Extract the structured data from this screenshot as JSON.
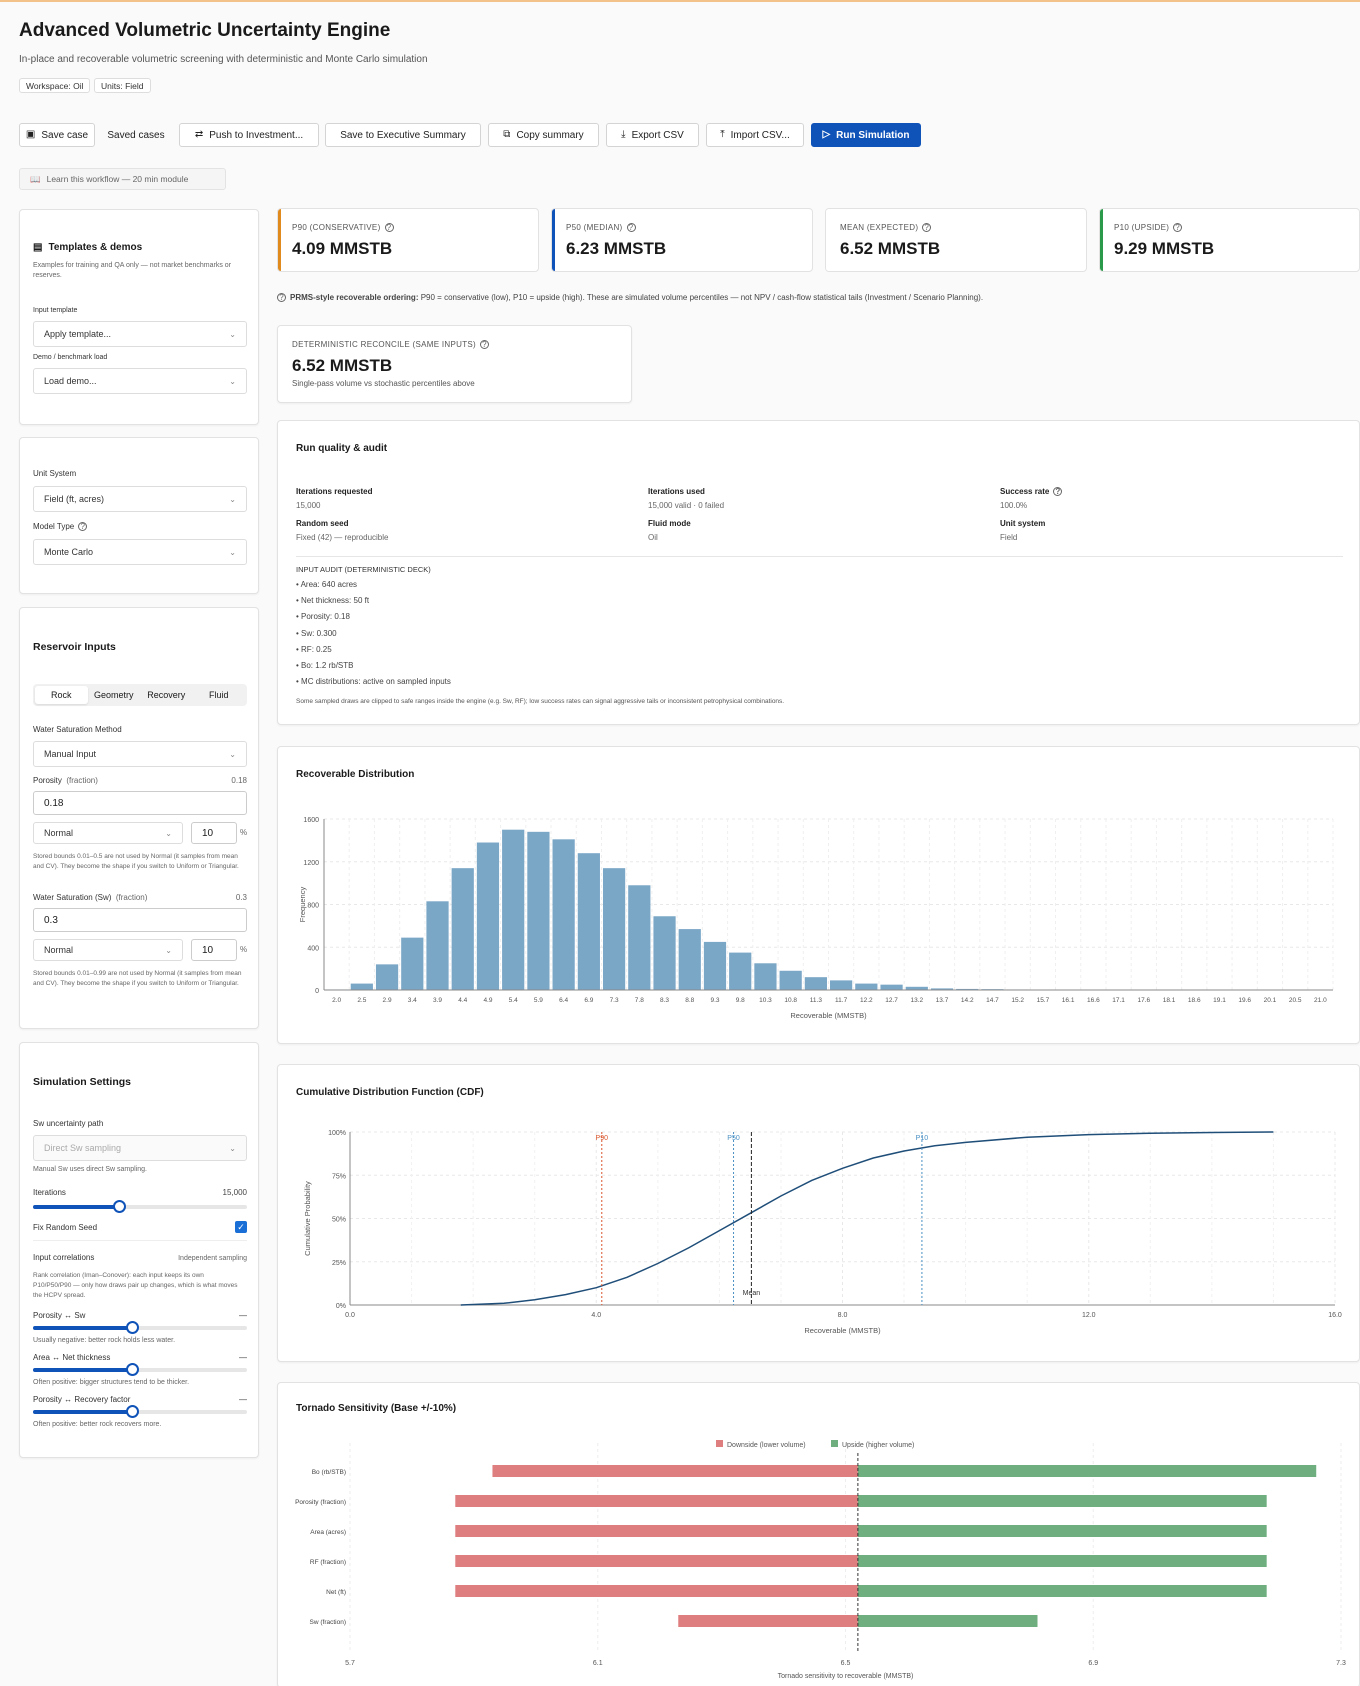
{
  "header": {
    "title": "Advanced Volumetric Uncertainty Engine",
    "subtitle": "In-place and recoverable volumetric screening with deterministic and Monte Carlo simulation",
    "tags": [
      "Workspace: Oil",
      "Units: Field"
    ]
  },
  "toolbar": {
    "save": "Save case",
    "saved": "Saved cases",
    "push": "Push to Investment...",
    "exec": "Save to Executive Summary",
    "copy": "Copy summary",
    "export": "Export CSV",
    "import": "Import CSV...",
    "run": "Run Simulation"
  },
  "learn": "Learn this workflow — 20 min module",
  "templates": {
    "title": "Templates & demos",
    "desc": "Examples for training and QA only — not market benchmarks or reserves.",
    "input_label": "Input template",
    "input_value": "Apply template...",
    "demo_label": "Demo / benchmark load",
    "demo_value": "Load demo..."
  },
  "units": {
    "unit_label": "Unit System",
    "unit_value": "Field (ft, acres)",
    "model_label": "Model Type",
    "model_value": "Monte Carlo"
  },
  "reservoir": {
    "title": "Reservoir Inputs",
    "tabs": [
      "Rock",
      "Geometry",
      "Recovery",
      "Fluid"
    ],
    "sw_method_label": "Water Saturation Method",
    "sw_method_value": "Manual Input",
    "porosity": {
      "label": "Porosity",
      "unit": "(fraction)",
      "right": "0.18",
      "value": "0.18",
      "dist": "Normal",
      "cv": "10",
      "pct": "%",
      "note": "Stored bounds 0.01–0.5 are not used by Normal (it samples from mean and CV). They become the shape if you switch to Uniform or Triangular."
    },
    "sw": {
      "label": "Water Saturation (Sw)",
      "unit": "(fraction)",
      "right": "0.3",
      "value": "0.3",
      "dist": "Normal",
      "cv": "10",
      "pct": "%",
      "note": "Stored bounds 0.01–0.99 are not used by Normal (it samples from mean and CV). They become the shape if you switch to Uniform or Triangular."
    }
  },
  "sim": {
    "title": "Simulation Settings",
    "path_label": "Sw uncertainty path",
    "path_value": "Direct Sw sampling",
    "path_note": "Manual Sw uses direct Sw sampling.",
    "iter_label": "Iterations",
    "iter_value": "15,000",
    "iter_fraction": 0.4,
    "seed_label": "Fix Random Seed",
    "corr_label": "Input correlations",
    "corr_right": "Independent sampling",
    "corr_note": "Rank correlation (Iman–Conover): each input keeps its own P10/P50/P90 — only how draws pair up changes, which is what moves the HCPV spread.",
    "pairs": [
      {
        "label": "Porosity ↔ Sw",
        "val": "—",
        "note": "Usually negative: better rock holds less water."
      },
      {
        "label": "Area ↔ Net thickness",
        "val": "—",
        "note": "Often positive: bigger structures tend to be thicker."
      },
      {
        "label": "Porosity ↔ Recovery factor",
        "val": "—",
        "note": "Often positive: better rock recovers more."
      }
    ]
  },
  "kpis": [
    {
      "label": "P90 (CONSERVATIVE)",
      "value": "4.09 MMSTB",
      "color": "#e08a1e"
    },
    {
      "label": "P50 (MEDIAN)",
      "value": "6.23 MMSTB",
      "color": "#1053b8"
    },
    {
      "label": "MEAN (EXPECTED)",
      "value": "6.52 MMSTB",
      "color": "#ffffff"
    },
    {
      "label": "P10 (UPSIDE)",
      "value": "9.29 MMSTB",
      "color": "#2a9a4a"
    }
  ],
  "prms_note_bold": "PRMS-style recoverable ordering:",
  "prms_note": "P90 = conservative (low), P10 = upside (high). These are simulated volume percentiles — not NPV / cash-flow statistical tails (Investment / Scenario Planning).",
  "det": {
    "label": "DETERMINISTIC RECONCILE (SAME INPUTS)",
    "value": "6.52 MMSTB",
    "note": "Single-pass volume vs stochastic percentiles above"
  },
  "audit": {
    "title": "Run quality & audit",
    "items": [
      {
        "k": "Iterations requested",
        "v": "15,000"
      },
      {
        "k": "Iterations used",
        "v": "15,000 valid · 0 failed"
      },
      {
        "k": "Success rate",
        "v": "100.0%"
      },
      {
        "k": "Random seed",
        "v": "Fixed (42) — reproducible"
      },
      {
        "k": "Fluid mode",
        "v": "Oil"
      },
      {
        "k": "Unit system",
        "v": "Field"
      }
    ],
    "deck_title": "INPUT AUDIT (DETERMINISTIC DECK)",
    "deck": [
      "Area: 640 acres",
      "Net thickness: 50 ft",
      "Porosity: 0.18",
      "Sw: 0.300",
      "RF: 0.25",
      "Bo: 1.2 rb/STB",
      "MC distributions: active on sampled inputs"
    ],
    "foot": "Some sampled draws are clipped to safe ranges inside the engine (e.g. Sw, RF); low success rates can signal aggressive tails or inconsistent petrophysical combinations."
  },
  "chart_data": [
    {
      "type": "bar",
      "title": "Recoverable Distribution",
      "xlabel": "Recoverable (MMSTB)",
      "ylabel": "Frequency",
      "ylim": [
        0,
        1600
      ],
      "yticks": [
        0,
        400,
        800,
        1200,
        1600
      ],
      "categories": [
        "2.0",
        "2.5",
        "2.9",
        "3.4",
        "3.9",
        "4.4",
        "4.9",
        "5.4",
        "5.9",
        "6.4",
        "6.9",
        "7.3",
        "7.8",
        "8.3",
        "8.8",
        "9.3",
        "9.8",
        "10.3",
        "10.8",
        "11.3",
        "11.7",
        "12.2",
        "12.7",
        "13.2",
        "13.7",
        "14.2",
        "14.7",
        "15.2",
        "15.7",
        "16.1",
        "16.6",
        "17.1",
        "17.6",
        "18.1",
        "18.6",
        "19.1",
        "19.6",
        "20.1",
        "20.5",
        "21.0"
      ],
      "values": [
        5,
        60,
        240,
        490,
        830,
        1140,
        1380,
        1500,
        1480,
        1410,
        1280,
        1140,
        980,
        690,
        570,
        450,
        350,
        250,
        180,
        120,
        90,
        60,
        50,
        30,
        15,
        10,
        8,
        5,
        3,
        2,
        2,
        1,
        1,
        1,
        1,
        1,
        1,
        0,
        0,
        0
      ],
      "color": "#7ba7c7"
    },
    {
      "type": "line",
      "title": "Cumulative Distribution Function (CDF)",
      "xlabel": "Recoverable (MMSTB)",
      "ylabel": "Cumulative Probability",
      "xlim": [
        0,
        16
      ],
      "ylim": [
        0,
        1
      ],
      "xticks": [
        "0.0",
        "4.0",
        "8.0",
        "12.0",
        "16.0"
      ],
      "yticks": [
        "0%",
        "25%",
        "50%",
        "75%",
        "100%"
      ],
      "x": [
        1.8,
        2.5,
        3.0,
        3.5,
        4.0,
        4.5,
        5.0,
        5.5,
        6.0,
        6.5,
        7.0,
        7.5,
        8.0,
        8.5,
        9.0,
        9.5,
        10.0,
        11.0,
        12.0,
        13.0,
        14.0,
        15.0
      ],
      "y": [
        0.0,
        0.01,
        0.03,
        0.06,
        0.1,
        0.16,
        0.24,
        0.33,
        0.43,
        0.53,
        0.63,
        0.72,
        0.79,
        0.85,
        0.89,
        0.92,
        0.94,
        0.97,
        0.985,
        0.993,
        0.997,
        1.0
      ],
      "markers": [
        {
          "label": "P90",
          "x": 4.09,
          "color": "#d9542b"
        },
        {
          "label": "P50",
          "x": 6.23,
          "color": "#4a8fc4"
        },
        {
          "label": "Mean",
          "x": 6.52,
          "color": "#222222"
        },
        {
          "label": "P10",
          "x": 9.29,
          "color": "#4a8fc4"
        }
      ],
      "color": "#1f4e79"
    },
    {
      "type": "bar",
      "title": "Tornado Sensitivity (Base +/-10%)",
      "xlabel": "Tornado sensitivity to recoverable (MMSTB)",
      "xlim": [
        5.7,
        7.3
      ],
      "xticks": [
        "5.7",
        "6.1",
        "6.5",
        "6.9",
        "7.3"
      ],
      "base": 6.52,
      "legend": [
        "Downside (lower volume)",
        "Upside (higher volume)"
      ],
      "categories": [
        "Bo (rb/STB)",
        "Porosity (fraction)",
        "Area (acres)",
        "RF (fraction)",
        "Net (ft)",
        "Sw (fraction)"
      ],
      "low": [
        5.93,
        5.87,
        5.87,
        5.87,
        5.87,
        6.23
      ],
      "high": [
        7.26,
        7.18,
        7.18,
        7.18,
        7.18,
        6.81
      ],
      "colors": [
        "#df7e7e",
        "#6faf7f"
      ]
    }
  ]
}
